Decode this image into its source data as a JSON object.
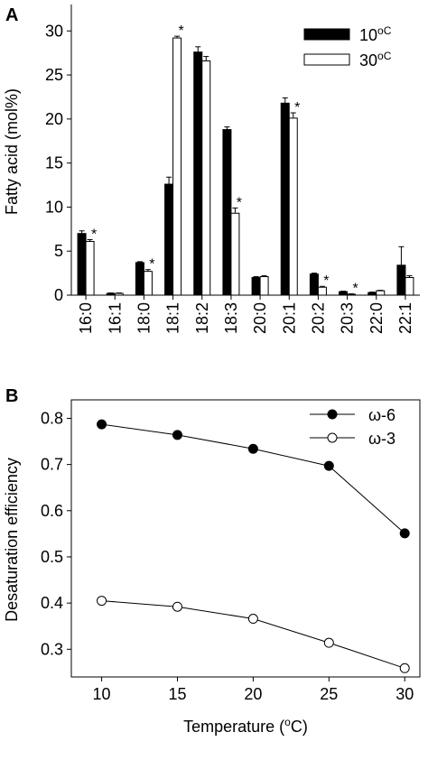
{
  "chart_data": [
    {
      "type": "bar",
      "panel_label": "A",
      "ylabel": "Fatty acid (mol%)",
      "ylim": [
        0,
        33
      ],
      "yticks": [
        0,
        5,
        10,
        15,
        20,
        25,
        30
      ],
      "categories": [
        "16:0",
        "16:1",
        "18:0",
        "18:1",
        "18:2",
        "18:3",
        "20:0",
        "20:1",
        "20:2",
        "20:3",
        "22:0",
        "22:1"
      ],
      "series": [
        {
          "name": "10",
          "name_unit": "oC",
          "color": "#000000",
          "values": [
            7.0,
            0.2,
            3.7,
            12.6,
            27.6,
            18.8,
            2.0,
            21.8,
            2.4,
            0.4,
            0.3,
            3.4
          ],
          "errors": [
            0.3,
            0.05,
            0.1,
            0.8,
            0.6,
            0.3,
            0.1,
            0.6,
            0.1,
            0.05,
            0.05,
            2.1
          ]
        },
        {
          "name": "30",
          "name_unit": "oC",
          "color": "#ffffff",
          "values": [
            6.1,
            0.2,
            2.7,
            29.2,
            26.6,
            9.3,
            2.1,
            20.1,
            0.9,
            0.1,
            0.5,
            2.0
          ],
          "errors": [
            0.2,
            0.05,
            0.2,
            0.2,
            0.5,
            0.6,
            0.1,
            0.6,
            0.1,
            0.05,
            0.05,
            0.2
          ]
        }
      ],
      "significance_marker": "*",
      "significant_categories": [
        "16:0",
        "18:0",
        "18:1",
        "18:3",
        "20:1",
        "20:2",
        "20:3"
      ],
      "legend_position": "top-right",
      "grid": false
    },
    {
      "type": "line",
      "panel_label": "B",
      "xlabel": "Temperature (",
      "xlabel_super": "o",
      "xlabel_end": "C)",
      "ylabel": "Desaturation efficiency",
      "x": [
        10,
        15,
        20,
        25,
        30
      ],
      "xlim": [
        8,
        31
      ],
      "ylim": [
        0.24,
        0.84
      ],
      "xticks": [
        10,
        15,
        20,
        25,
        30
      ],
      "yticks": [
        0.3,
        0.4,
        0.5,
        0.6,
        0.7,
        0.8
      ],
      "series": [
        {
          "name": "ω-6",
          "marker": "filled-circle",
          "values": [
            0.787,
            0.764,
            0.734,
            0.697,
            0.551
          ],
          "errors": [
            0.005,
            0.005,
            0.005,
            0.005,
            0.008
          ]
        },
        {
          "name": "ω-3",
          "marker": "open-circle",
          "values": [
            0.405,
            0.392,
            0.366,
            0.314,
            0.259
          ],
          "errors": [
            0.005,
            0.005,
            0.005,
            0.005,
            0.009
          ]
        }
      ],
      "legend_position": "top-right",
      "grid": false
    }
  ]
}
